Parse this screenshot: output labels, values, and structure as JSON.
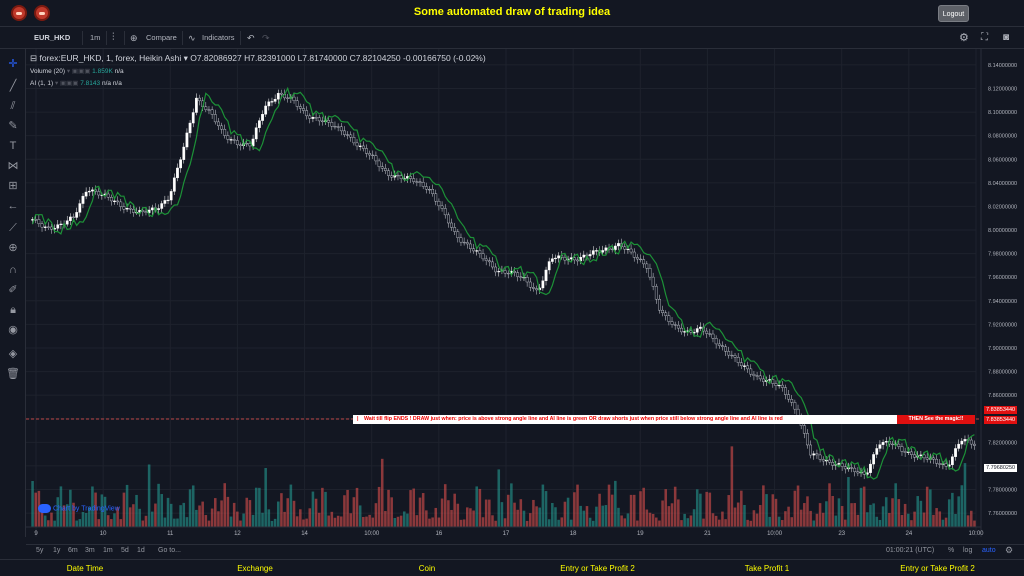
{
  "header": {
    "title": "Some automated draw of trading idea",
    "logout_label": "Logout"
  },
  "toolbar": {
    "symbol": "EUR_HKD",
    "interval": "1m",
    "compare": "Compare",
    "indicators": "Indicators"
  },
  "legend": {
    "main": "forex:EUR_HKD, 1, forex, Heikin Ashi",
    "open": "O7.82086927",
    "high": "H7.82391000",
    "low": "L7.81740000",
    "close": "C7.82104250",
    "change": "-0.00166750 (-0.02%)",
    "volume_label": "Volume (20)",
    "volume_value": "1.859K",
    "volume_na": "n/a",
    "ai_label": "AI (1, 1)",
    "ai_value": "7.8143",
    "ai_na1": "n/a",
    "ai_na2": "n/a"
  },
  "watermark": "Chart by TradingView",
  "banner": {
    "text": "Wait till flip ENDS  !   DRAW just when:  price is above strong angle line and AI line is green          OR          draw shorts just when price still below strong angle line and AI line is red",
    "cta": "THEN See the magic!!"
  },
  "price_tags": {
    "upper": "7.83853440",
    "lower": "7.83853440",
    "current": "7.79680250"
  },
  "bottombar": {
    "ranges": [
      "5y",
      "1y",
      "6m",
      "3m",
      "1m",
      "5d",
      "1d"
    ],
    "goto": "Go to...",
    "time": "01:00:21 (UTC)",
    "pct": "%",
    "log": "log",
    "auto": "auto"
  },
  "columns": [
    "Date Time",
    "Exchange",
    "Coin",
    "Entry or Take Profit 2",
    "Take Profit 1",
    "Entry or Take Profit 2"
  ],
  "colors": {
    "up": "#26a69a",
    "down": "#ef5350",
    "ai_green": "#1e9e3a",
    "ai_red": "#c01818",
    "accent": "#ffff00"
  },
  "chart_data": {
    "type": "line",
    "title": "",
    "y_ticks": [
      "8.14000000",
      "8.12000000",
      "8.10000000",
      "8.08000000",
      "8.06000000",
      "8.04000000",
      "8.02000000",
      "8.00000000",
      "7.98000000",
      "7.96000000",
      "7.94000000",
      "7.92000000",
      "7.90000000",
      "7.88000000",
      "7.86000000",
      "7.84000000",
      "7.82000000",
      "7.80000000",
      "7.78000000",
      "7.76000000"
    ],
    "x_ticks": [
      "9",
      "10",
      "11",
      "12",
      "14",
      "10:00",
      "16",
      "17",
      "18",
      "19",
      "21",
      "10:00",
      "23",
      "24",
      "10:00"
    ],
    "ylim": [
      7.755,
      8.145
    ],
    "series": [
      {
        "values": [
          8.008,
          8.002,
          8.004,
          8.01,
          8.036,
          8.03,
          8.024,
          8.018,
          8.014,
          8.018,
          8.028,
          8.066,
          8.112,
          8.1,
          8.08,
          8.074,
          8.072,
          8.104,
          8.116,
          8.11,
          8.098,
          8.094,
          8.088,
          8.082,
          8.07,
          8.06,
          8.048,
          8.044,
          8.042,
          8.036,
          8.016,
          7.996,
          7.986,
          7.976,
          7.966,
          7.964,
          7.958,
          7.948,
          7.976,
          7.976,
          7.976,
          7.98,
          7.984,
          7.988,
          7.978,
          7.97,
          7.93,
          7.918,
          7.914,
          7.916,
          7.906,
          7.896,
          7.884,
          7.876,
          7.872,
          7.864,
          7.846,
          7.81,
          7.804,
          7.802,
          7.796,
          7.792,
          7.82,
          7.818,
          7.812,
          7.808,
          7.804,
          7.8,
          7.822,
          7.818
        ]
      }
    ]
  }
}
